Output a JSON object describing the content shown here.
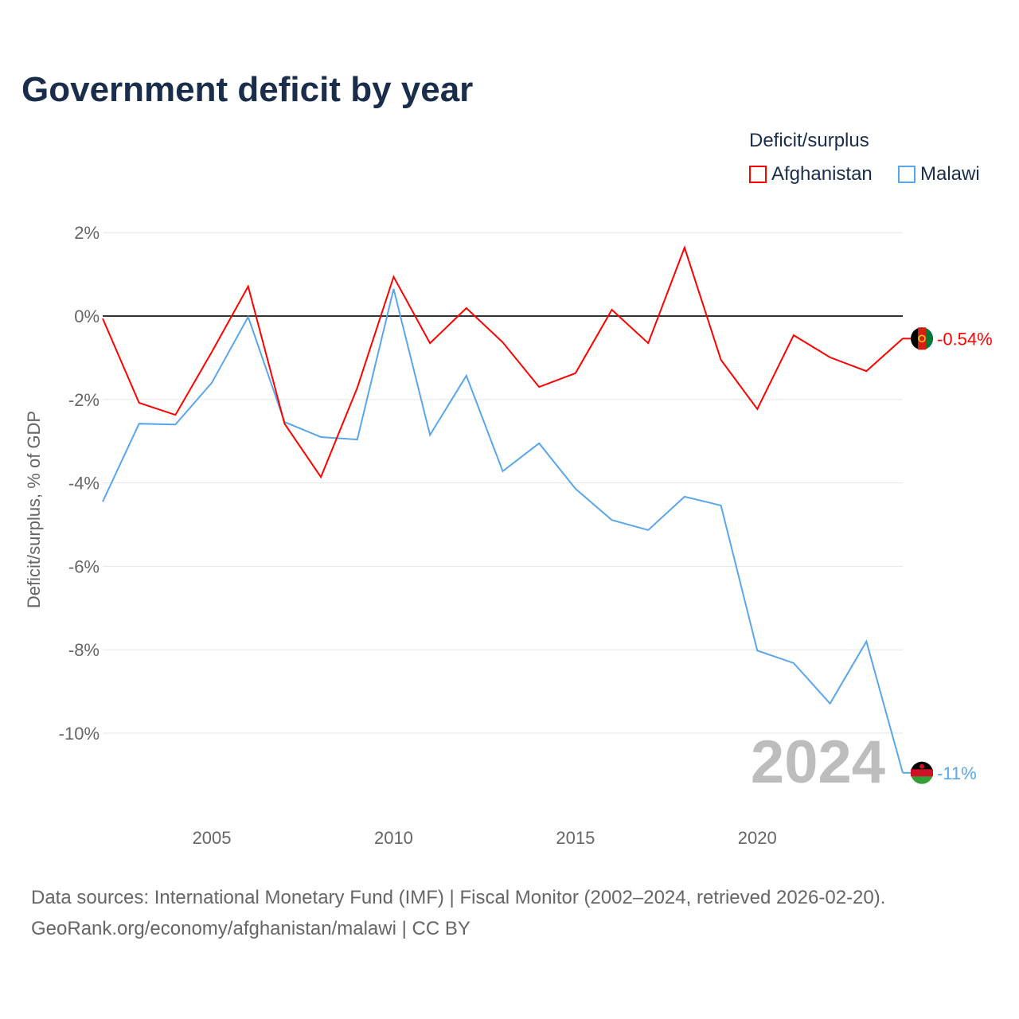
{
  "title": "Government deficit by year",
  "legend": {
    "title": "Deficit/surplus",
    "items": [
      {
        "name": "Afghanistan",
        "color": "#ff0000"
      },
      {
        "name": "Malawi",
        "color": "#5aa6ea"
      }
    ]
  },
  "source": {
    "line1": "Data sources: International Monetary Fund (IMF) | Fiscal Monitor (2002–2024, retrieved 2026-02-20).",
    "line2": "GeoRank.org/economy/afghanistan/malawi | CC BY"
  },
  "chart_data": {
    "type": "line",
    "title": "Government deficit by year",
    "xlabel": "",
    "ylabel": "Deficit/surplus, % of GDP",
    "year_watermark": "2024",
    "xlim": [
      2002,
      2024
    ],
    "ylim": [
      -11.5,
      2.5
    ],
    "xticks": [
      2005,
      2010,
      2015,
      2020
    ],
    "yticks": [
      {
        "v": 2,
        "label": "2%"
      },
      {
        "v": 0,
        "label": "0%"
      },
      {
        "v": -2,
        "label": "-2%"
      },
      {
        "v": -4,
        "label": "-4%"
      },
      {
        "v": -6,
        "label": "-6%"
      },
      {
        "v": -8,
        "label": "-8%"
      },
      {
        "v": -10,
        "label": "-10%"
      }
    ],
    "x": [
      2002,
      2003,
      2004,
      2005,
      2006,
      2007,
      2008,
      2009,
      2010,
      2011,
      2012,
      2013,
      2014,
      2015,
      2016,
      2017,
      2018,
      2019,
      2020,
      2021,
      2022,
      2023,
      2024
    ],
    "series": [
      {
        "name": "Afghanistan",
        "color": "#ff0000",
        "end_label": "-0.54%",
        "values": [
          -0.06,
          -2.08,
          -2.37,
          -0.86,
          0.71,
          -2.58,
          -3.86,
          -1.72,
          0.94,
          -0.65,
          0.19,
          -0.63,
          -1.7,
          -1.37,
          0.15,
          -0.65,
          1.64,
          -1.05,
          -2.23,
          -0.46,
          -0.99,
          -1.32,
          -0.54
        ]
      },
      {
        "name": "Malawi",
        "color": "#5aa6ea",
        "end_label": "-11%",
        "values": [
          -4.45,
          -2.58,
          -2.6,
          -1.6,
          -0.02,
          -2.54,
          -2.9,
          -2.96,
          0.65,
          -2.85,
          -1.43,
          -3.72,
          -3.05,
          -4.14,
          -4.89,
          -5.13,
          -4.33,
          -4.54,
          -8.02,
          -8.32,
          -9.29,
          -7.8,
          -10.95
        ]
      }
    ]
  }
}
